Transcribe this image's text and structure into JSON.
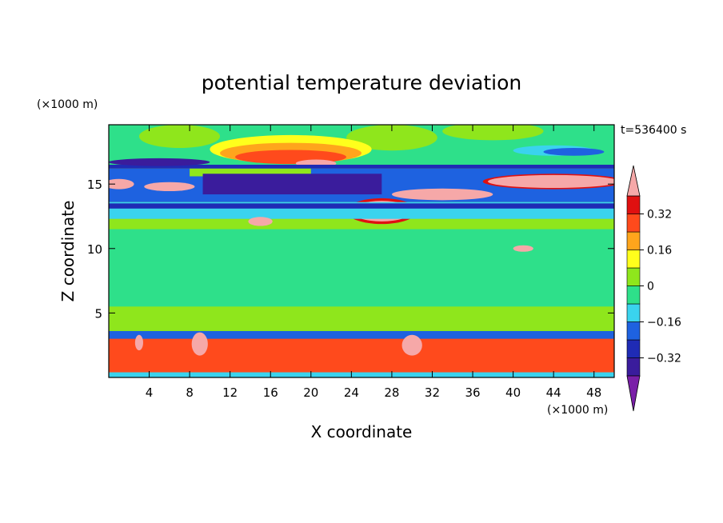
{
  "chart_data": {
    "type": "heatmap",
    "title": "potential temperature deviation",
    "xlabel": "X coordinate",
    "ylabel": "Z coordinate",
    "x_unit": "(×1000 m)",
    "y_unit": "(×1000 m)",
    "time_label": "t=536400 s",
    "xlim": [
      0,
      50
    ],
    "ylim": [
      0,
      19.6
    ],
    "x_ticks": [
      4,
      8,
      12,
      16,
      20,
      24,
      28,
      32,
      36,
      40,
      44,
      48
    ],
    "y_ticks": [
      5,
      10,
      15
    ],
    "colorbar": {
      "levels": [
        -0.4,
        -0.32,
        -0.24,
        -0.16,
        -0.08,
        0,
        0.08,
        0.16,
        0.24,
        0.32,
        0.4
      ],
      "tick_labels": [
        "0.32",
        "0.16",
        "0",
        "−0.16",
        "−0.32"
      ],
      "tick_values": [
        0.32,
        0.16,
        0,
        -0.16,
        -0.32
      ],
      "colors": [
        "#7a1fa8",
        "#3a1c9c",
        "#1f2bb5",
        "#1e62e0",
        "#3ad3ee",
        "#2ee08a",
        "#8fe61c",
        "#ffff1c",
        "#ffa51c",
        "#ff4a1c",
        "#e01010",
        "#f6a8a8"
      ],
      "extend": "both"
    },
    "regions": [
      {
        "level": 0.04,
        "shape": "rect",
        "x": [
          0,
          50
        ],
        "y": [
          3.6,
          12.3
        ]
      },
      {
        "level": -0.04,
        "shape": "rect",
        "x": [
          0,
          50
        ],
        "y": [
          16.5,
          19.6
        ]
      },
      {
        "level": -0.04,
        "shape": "rect",
        "x": [
          0,
          50
        ],
        "y": [
          5.5,
          11.5
        ]
      },
      {
        "level": 0.04,
        "shape": "ellipse",
        "cx": 28,
        "cy": 18.6,
        "rx": 4.5,
        "ry": 1.0
      },
      {
        "level": 0.04,
        "shape": "ellipse",
        "cx": 38,
        "cy": 19.1,
        "rx": 5,
        "ry": 0.7
      },
      {
        "level": 0.04,
        "shape": "ellipse",
        "cx": 7,
        "cy": 18.7,
        "rx": 4,
        "ry": 0.9
      },
      {
        "level": 0.12,
        "shape": "ellipse",
        "cx": 18,
        "cy": 17.7,
        "rx": 8,
        "ry": 1.1
      },
      {
        "level": 0.2,
        "shape": "ellipse",
        "cx": 18,
        "cy": 17.4,
        "rx": 7,
        "ry": 0.8
      },
      {
        "level": 0.28,
        "shape": "ellipse",
        "cx": 18,
        "cy": 17.1,
        "rx": 5.5,
        "ry": 0.55
      },
      {
        "level": 0.45,
        "shape": "ellipse",
        "cx": 20.5,
        "cy": 16.6,
        "rx": 2,
        "ry": 0.3
      },
      {
        "level": -0.12,
        "shape": "ellipse",
        "cx": 44,
        "cy": 17.6,
        "rx": 4,
        "ry": 0.4
      },
      {
        "level": -0.2,
        "shape": "ellipse",
        "cx": 46,
        "cy": 17.5,
        "rx": 3,
        "ry": 0.3
      },
      {
        "level": -0.28,
        "shape": "rect",
        "x": [
          0,
          50
        ],
        "y": [
          16.2,
          16.5
        ]
      },
      {
        "level": -0.36,
        "shape": "ellipse",
        "cx": 5,
        "cy": 16.7,
        "rx": 5,
        "ry": 0.3
      },
      {
        "level": -0.2,
        "shape": "rect",
        "x": [
          0,
          50
        ],
        "y": [
          13.6,
          16.2
        ]
      },
      {
        "level": 0.04,
        "shape": "rect",
        "x": [
          8,
          20
        ],
        "y": [
          15.6,
          16.2
        ]
      },
      {
        "level": -0.36,
        "shape": "rect",
        "x": [
          9.3,
          27
        ],
        "y": [
          14.2,
          15.8
        ]
      },
      {
        "level": 0.45,
        "shape": "ellipse",
        "cx": 1,
        "cy": 15.0,
        "rx": 1.5,
        "ry": 0.4
      },
      {
        "level": 0.45,
        "shape": "ellipse",
        "cx": 6,
        "cy": 14.8,
        "rx": 2.5,
        "ry": 0.35
      },
      {
        "level": 0.36,
        "shape": "ellipse",
        "cx": 44,
        "cy": 15.2,
        "rx": 7,
        "ry": 0.6
      },
      {
        "level": 0.45,
        "shape": "ellipse",
        "cx": 44,
        "cy": 15.2,
        "rx": 6.5,
        "ry": 0.5
      },
      {
        "level": 0.45,
        "shape": "ellipse",
        "cx": 33,
        "cy": 14.2,
        "rx": 5,
        "ry": 0.45
      },
      {
        "level": 0.36,
        "shape": "ellipse",
        "cx": 27,
        "cy": 12.9,
        "rx": 3.5,
        "ry": 1.0
      },
      {
        "level": 0.45,
        "shape": "ellipse",
        "cx": 27,
        "cy": 12.9,
        "rx": 3,
        "ry": 0.8
      },
      {
        "level": -0.12,
        "shape": "rect",
        "x": [
          0,
          50
        ],
        "y": [
          12.3,
          13.6
        ]
      },
      {
        "level": -0.28,
        "shape": "rect",
        "x": [
          0,
          50
        ],
        "y": [
          13.1,
          13.5
        ]
      },
      {
        "level": 0.45,
        "shape": "ellipse",
        "cx": 15,
        "cy": 12.1,
        "rx": 1.2,
        "ry": 0.35
      },
      {
        "level": 0.45,
        "shape": "ellipse",
        "cx": 41,
        "cy": 10.0,
        "rx": 1,
        "ry": 0.25
      },
      {
        "level": -0.2,
        "shape": "rect",
        "x": [
          0,
          50
        ],
        "y": [
          2.0,
          3.6
        ]
      },
      {
        "level": 0.28,
        "shape": "rect",
        "x": [
          0,
          50
        ],
        "y": [
          0.3,
          3.0
        ]
      },
      {
        "level": -0.12,
        "shape": "rect",
        "x": [
          0,
          50
        ],
        "y": [
          0,
          0.4
        ]
      },
      {
        "level": 0.45,
        "shape": "ellipse",
        "cx": 9,
        "cy": 2.6,
        "rx": 0.8,
        "ry": 0.9
      },
      {
        "level": 0.45,
        "shape": "ellipse",
        "cx": 30,
        "cy": 2.5,
        "rx": 1,
        "ry": 0.8
      },
      {
        "level": 0.45,
        "shape": "ellipse",
        "cx": 3,
        "cy": 2.7,
        "rx": 0.4,
        "ry": 0.6
      }
    ]
  }
}
